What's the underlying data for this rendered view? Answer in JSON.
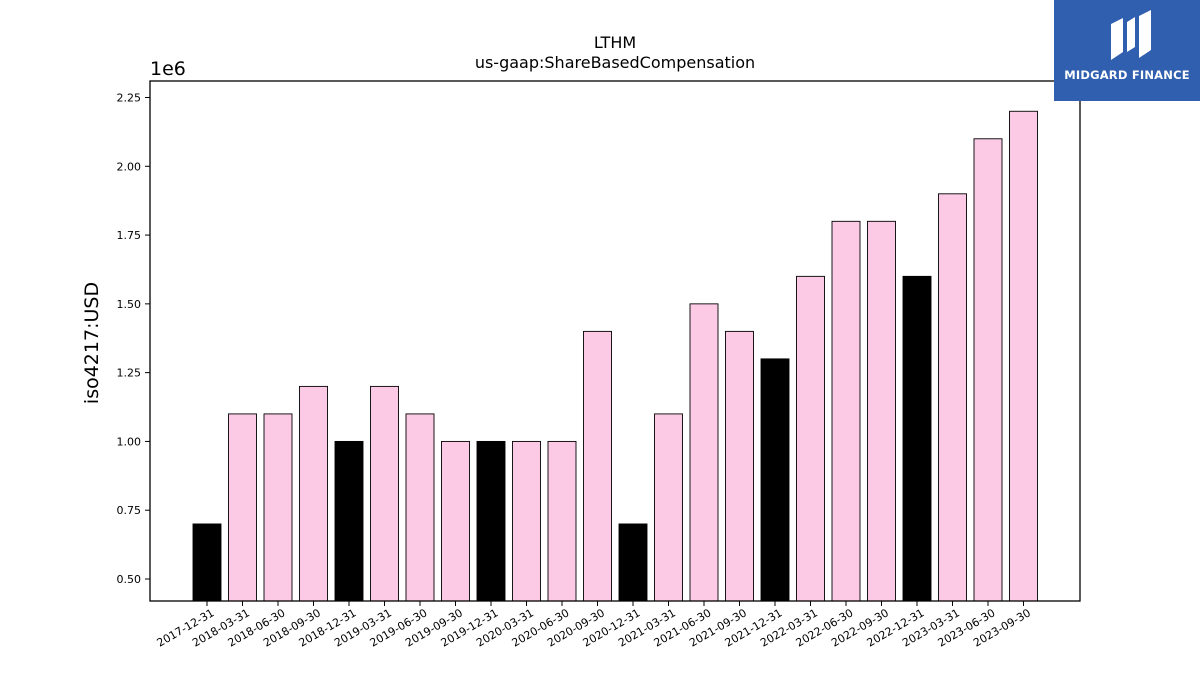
{
  "logo": {
    "text": "MIDGARD FINANCE",
    "background": "#2f5fae"
  },
  "chart_data": {
    "type": "bar",
    "title": "LTHM",
    "subtitle": "us-gaap:ShareBasedCompensation",
    "ylabel": "iso4217:USD",
    "xlabel": "",
    "y_offset_label": "1e6",
    "ylim": [
      0.42,
      2.31
    ],
    "yticks": [
      "0.50",
      "0.75",
      "1.00",
      "1.25",
      "1.50",
      "1.75",
      "2.00",
      "2.25"
    ],
    "grid": false,
    "categories": [
      "2017-12-31",
      "2018-03-31",
      "2018-06-30",
      "2018-09-30",
      "2018-12-31",
      "2019-03-31",
      "2019-06-30",
      "2019-09-30",
      "2019-12-31",
      "2020-03-31",
      "2020-06-30",
      "2020-09-30",
      "2020-12-31",
      "2021-03-31",
      "2021-06-30",
      "2021-09-30",
      "2021-12-31",
      "2022-03-31",
      "2022-06-30",
      "2022-09-30",
      "2022-12-31",
      "2023-03-31",
      "2023-06-30",
      "2023-09-30"
    ],
    "values": [
      0.7,
      1.1,
      1.1,
      1.2,
      1.0,
      1.2,
      1.1,
      1.0,
      1.0,
      1.0,
      1.0,
      1.4,
      0.7,
      1.1,
      1.5,
      1.4,
      1.3,
      1.6,
      1.8,
      1.8,
      1.6,
      1.9,
      2.1,
      2.2
    ],
    "colors": {
      "year_end": "#000000",
      "quarter": "#fccae4",
      "edge": "#000000"
    },
    "year_end_flags": [
      true,
      false,
      false,
      false,
      true,
      false,
      false,
      false,
      true,
      false,
      false,
      false,
      true,
      false,
      false,
      false,
      true,
      false,
      false,
      false,
      true,
      false,
      false,
      false
    ]
  }
}
